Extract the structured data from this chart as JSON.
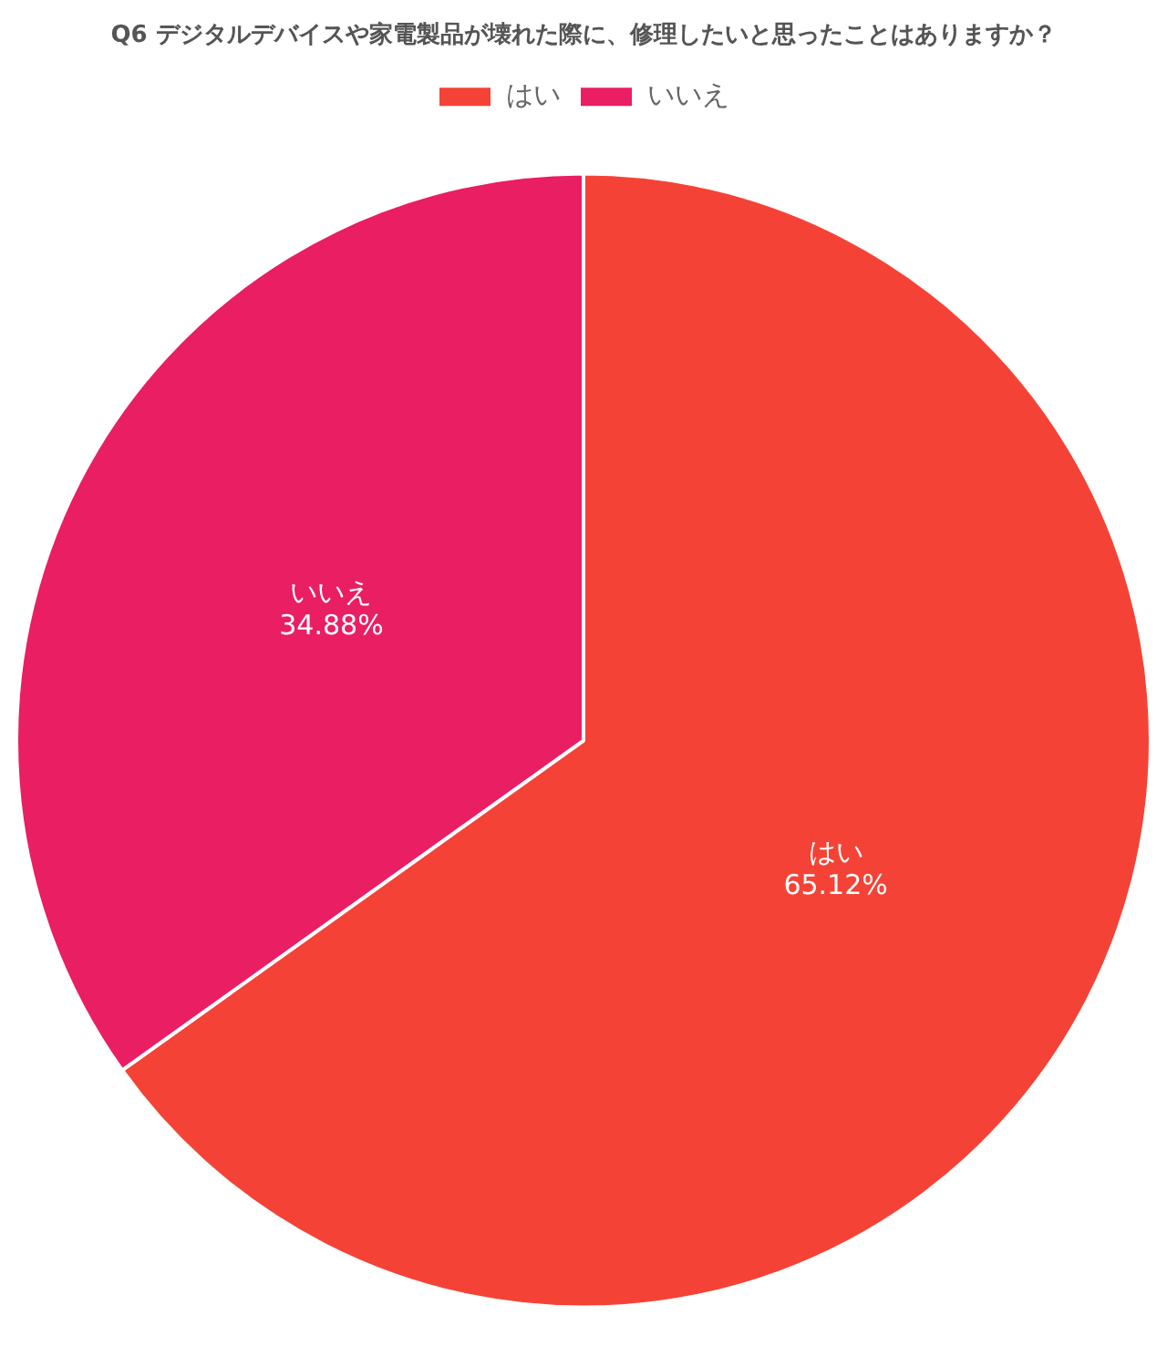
{
  "chart_data": {
    "type": "pie",
    "title": "Q6 デジタルデバイスや家電製品が壊れた際に、修理したいと思ったことはありますか？",
    "categories": [
      "はい",
      "いいえ"
    ],
    "values": [
      65.12,
      34.88
    ],
    "value_labels": [
      "65.12%",
      "34.88%"
    ],
    "colors": [
      "#f44336",
      "#e91e63"
    ],
    "legend": "top"
  }
}
